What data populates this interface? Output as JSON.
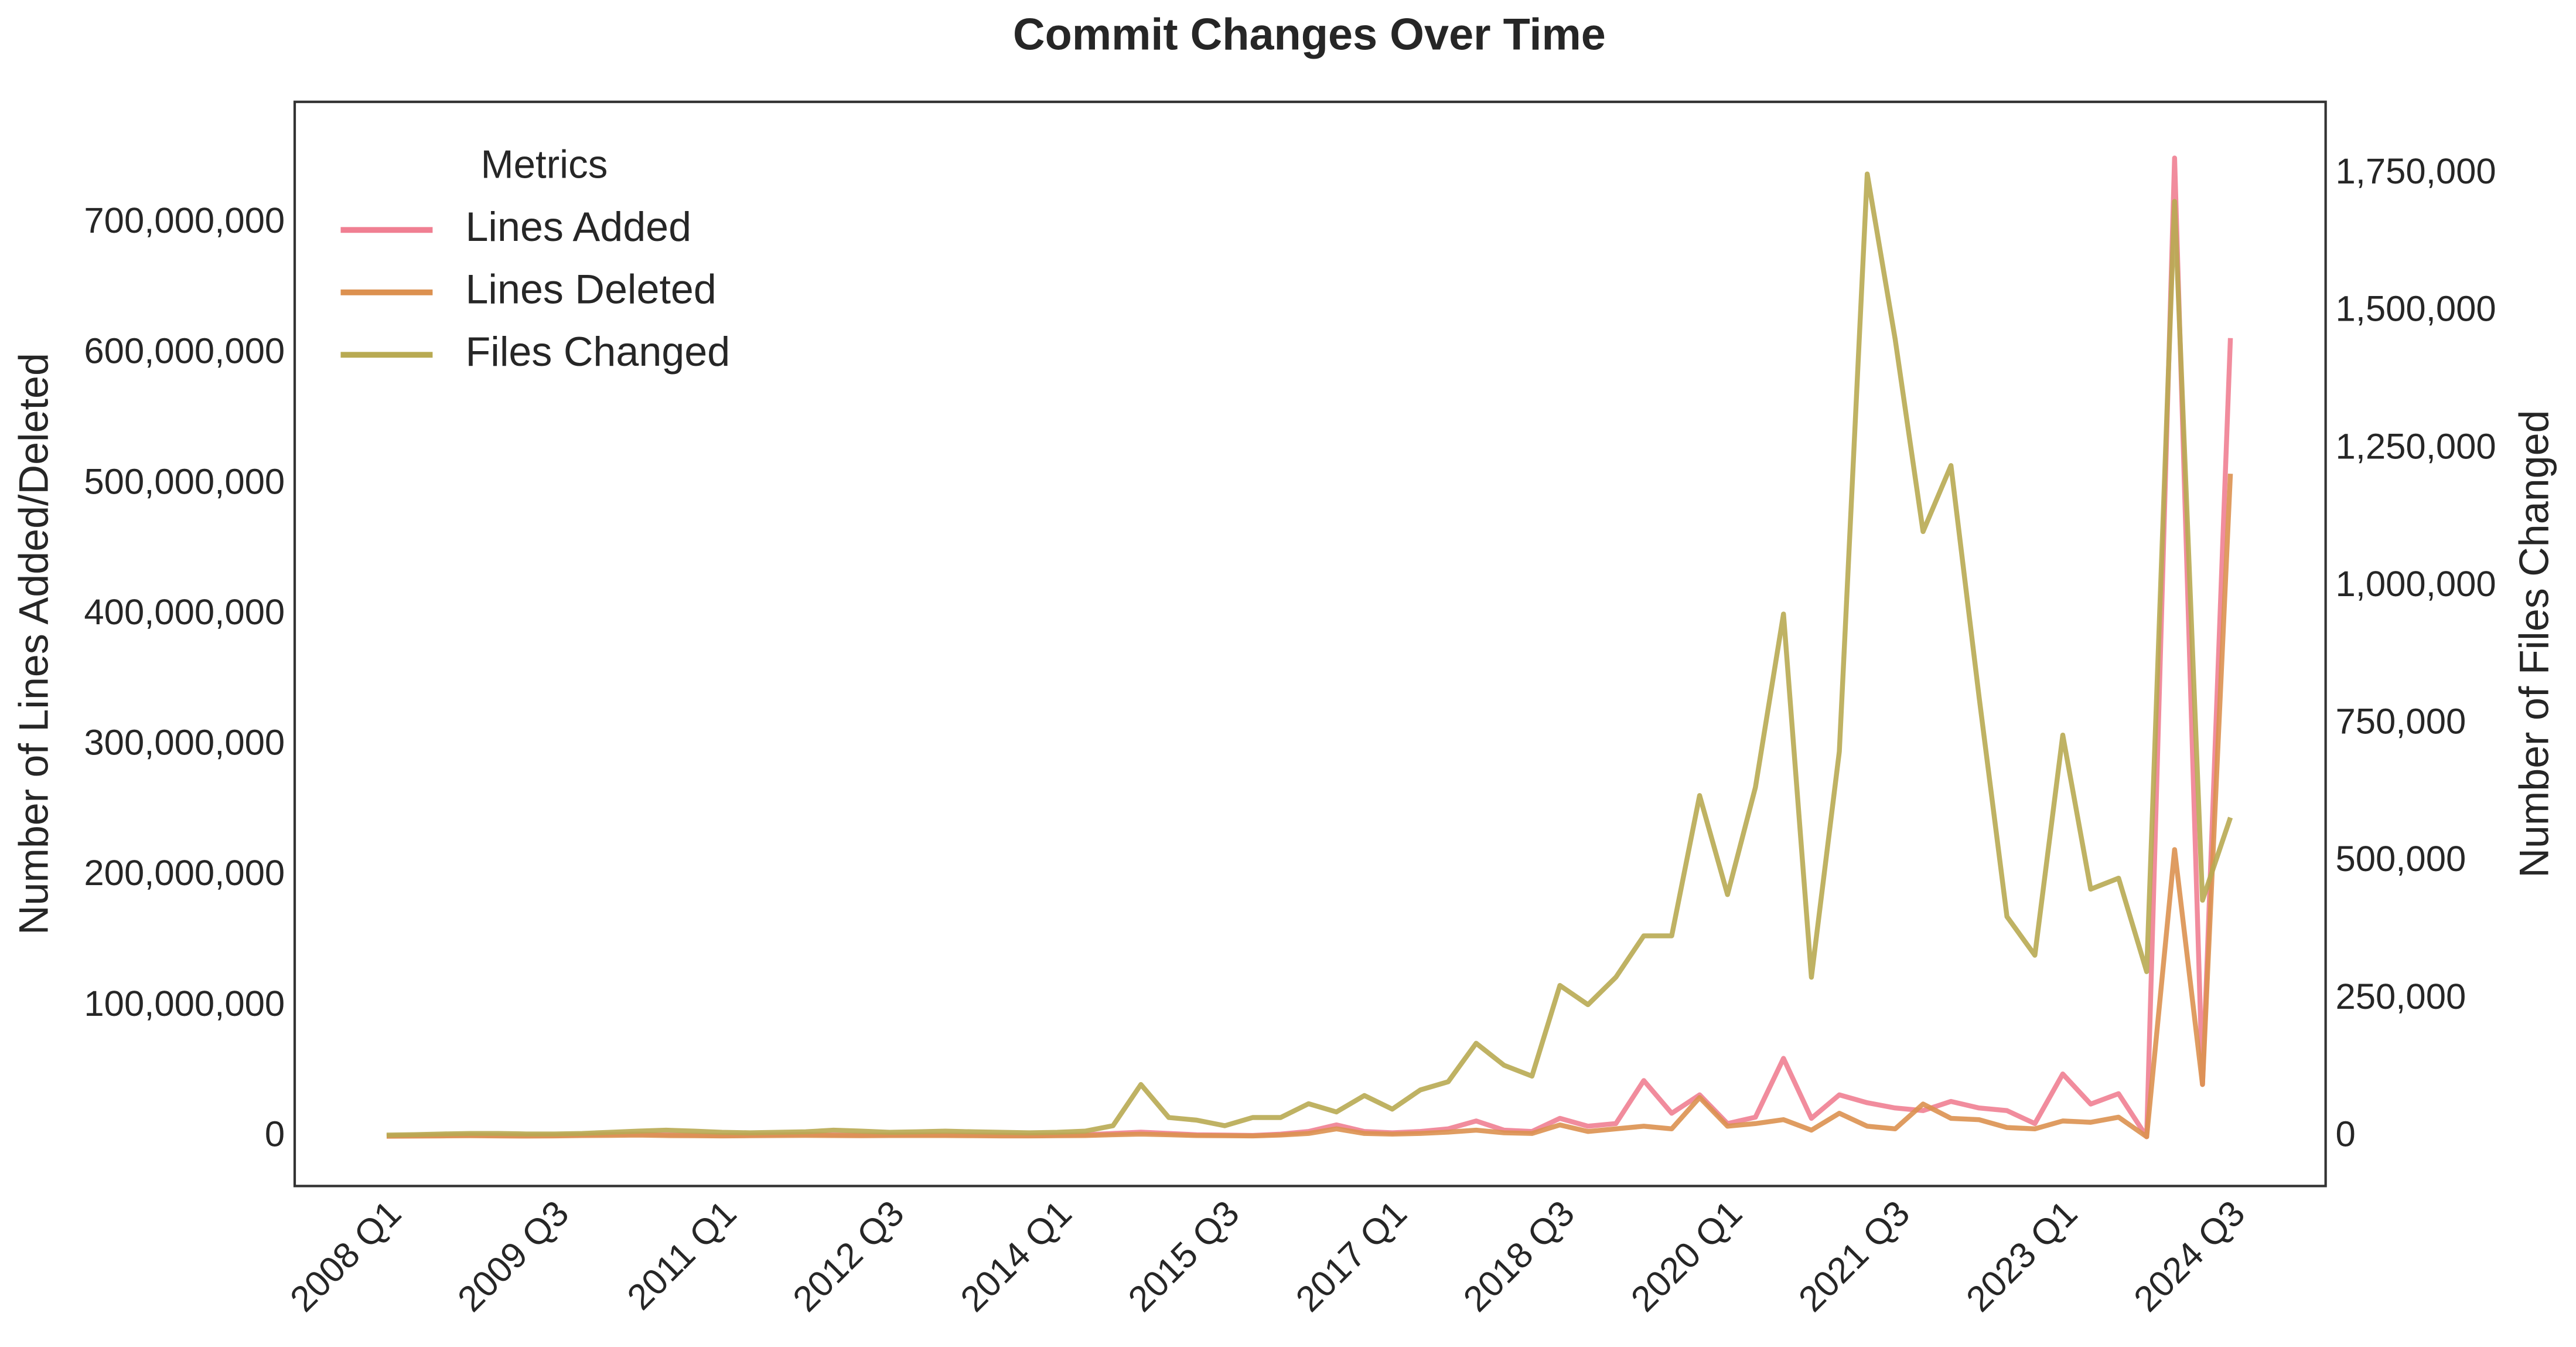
{
  "chart_data": {
    "type": "line",
    "title": "Commit Changes Over Time",
    "ylabel": "Number of Lines Added/Deleted",
    "y2label": "Number of Files Changed",
    "legend_title": "Metrics",
    "legend": "upper left",
    "grid": true,
    "categories": [
      "2008 Q1",
      null,
      null,
      null,
      null,
      null,
      "2009 Q3",
      null,
      null,
      null,
      null,
      null,
      "2011 Q1",
      null,
      null,
      null,
      null,
      null,
      "2012 Q3",
      null,
      null,
      null,
      null,
      null,
      "2014 Q1",
      null,
      null,
      null,
      null,
      null,
      "2015 Q3",
      null,
      null,
      null,
      null,
      null,
      "2017 Q1",
      null,
      null,
      null,
      null,
      null,
      "2018 Q3",
      null,
      null,
      null,
      null,
      null,
      "2020 Q1",
      null,
      null,
      null,
      null,
      null,
      "2021 Q3",
      null,
      null,
      null,
      null,
      null,
      "2023 Q1",
      null,
      null,
      null,
      null,
      null,
      "2024 Q3"
    ],
    "ylim": [
      -37800000,
      793000000
    ],
    "yticks": [
      {
        "value": 0,
        "label": "0"
      },
      {
        "value": 100000000,
        "label": "100,000,000"
      },
      {
        "value": 200000000,
        "label": "200,000,000"
      },
      {
        "value": 300000000,
        "label": "300,000,000"
      },
      {
        "value": 400000000,
        "label": "400,000,000"
      },
      {
        "value": 500000000,
        "label": "500,000,000"
      },
      {
        "value": 600000000,
        "label": "600,000,000"
      },
      {
        "value": 700000000,
        "label": "700,000,000"
      }
    ],
    "y2lim": [
      -89600,
      1881000
    ],
    "y2ticks": [
      {
        "value": 0,
        "label": "0"
      },
      {
        "value": 250000,
        "label": "250,000"
      },
      {
        "value": 500000,
        "label": "500,000"
      },
      {
        "value": 750000,
        "label": "750,000"
      },
      {
        "value": 1000000,
        "label": "1,000,000"
      },
      {
        "value": 1250000,
        "label": "1,250,000"
      },
      {
        "value": 1500000,
        "label": "1,500,000"
      },
      {
        "value": 1750000,
        "label": "1,750,000"
      }
    ],
    "series": [
      {
        "name": "Lines Added",
        "color": "#f07f92",
        "values": [
          500000,
          800000,
          1000000,
          1200000,
          1000000,
          900000,
          1000000,
          1300000,
          1800000,
          2000000,
          1500000,
          1200000,
          1000000,
          1200000,
          1500000,
          1800000,
          1400000,
          1200000,
          1300000,
          1500000,
          1400000,
          1200000,
          1100000,
          1000000,
          1200000,
          1500000,
          2500000,
          3500000,
          2500000,
          1500000,
          1200000,
          1000000,
          2000000,
          4000000,
          9000000,
          4000000,
          3000000,
          4000000,
          6000000,
          12000000,
          5000000,
          4000000,
          14000000,
          8000000,
          10000000,
          43000000,
          18000000,
          32000000,
          10000000,
          15000000,
          60000000,
          14000000,
          32000000,
          26000000,
          22000000,
          20000000,
          27000000,
          22000000,
          20000000,
          10000000,
          48000000,
          25000000,
          33000000,
          0,
          750000000,
          40000000,
          612000000
        ]
      },
      {
        "name": "Lines Deleted",
        "color": "#dc9150",
        "values": [
          300000,
          500000,
          600000,
          700000,
          600000,
          500000,
          600000,
          800000,
          1000000,
          1200000,
          900000,
          700000,
          600000,
          700000,
          900000,
          1000000,
          800000,
          700000,
          800000,
          900000,
          800000,
          700000,
          600000,
          600000,
          700000,
          900000,
          1500000,
          2000000,
          1500000,
          900000,
          700000,
          600000,
          1200000,
          2500000,
          6000000,
          2500000,
          2000000,
          2500000,
          3500000,
          5000000,
          3000000,
          2500000,
          9000000,
          4000000,
          6000000,
          8000000,
          6000000,
          30000000,
          8000000,
          10000000,
          13000000,
          5000000,
          18000000,
          8000000,
          6000000,
          25000000,
          14000000,
          13000000,
          7000000,
          6000000,
          12000000,
          11000000,
          15000000,
          0,
          220000000,
          40000000,
          508000000
        ]
      },
      {
        "name": "Files Changed",
        "color": "#b8aa52",
        "axis": "y2",
        "values": [
          3000,
          4000,
          5000,
          6000,
          6000,
          5000,
          5000,
          6000,
          8000,
          10000,
          12000,
          10000,
          8000,
          7000,
          8000,
          9000,
          12000,
          10000,
          8000,
          9000,
          10000,
          9000,
          8000,
          7000,
          8000,
          10000,
          20000,
          95000,
          35000,
          30000,
          20000,
          35000,
          35000,
          60000,
          45000,
          75000,
          50000,
          85000,
          100000,
          170000,
          130000,
          110000,
          275000,
          240000,
          290000,
          365000,
          365000,
          620000,
          440000,
          635000,
          950000,
          290000,
          700000,
          1750000,
          1450000,
          1100000,
          1220000,
          800000,
          400000,
          330000,
          730000,
          450000,
          470000,
          300000,
          1700000,
          430000,
          580000
        ]
      }
    ]
  }
}
